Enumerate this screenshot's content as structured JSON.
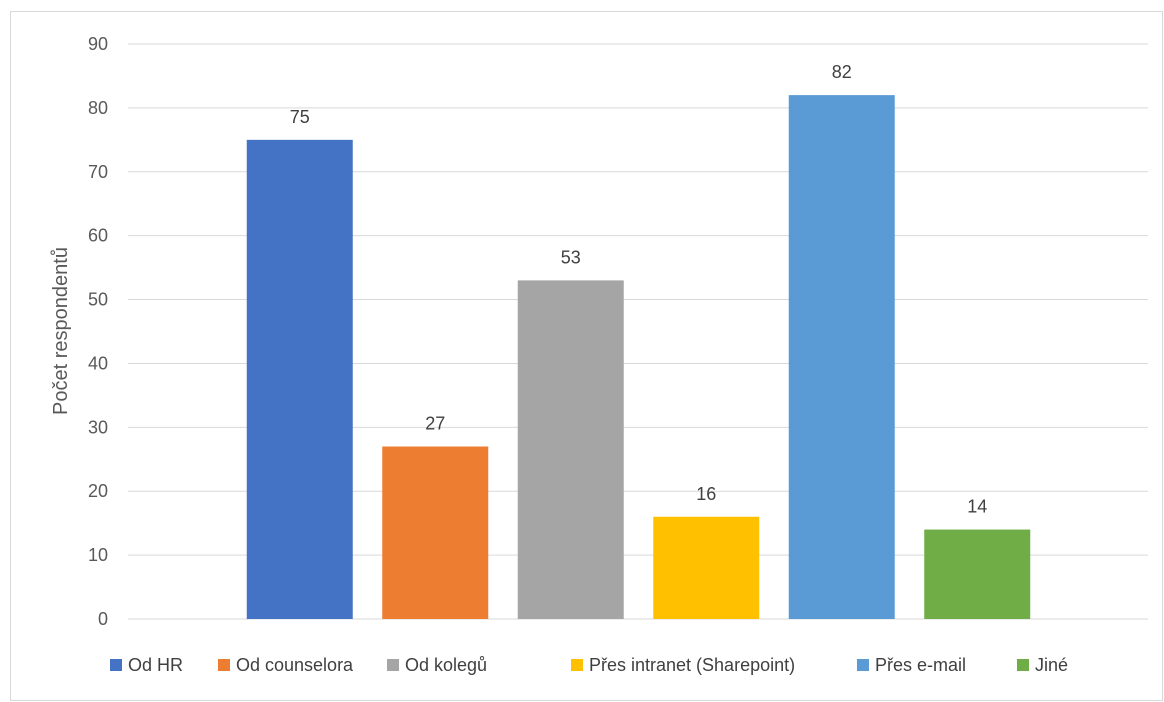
{
  "chart_data": {
    "type": "bar",
    "categories": [
      "Od HR",
      "Od counselora",
      "Od kolegů",
      "Přes intranet (Sharepoint)",
      "Přes e-mail",
      "Jiné"
    ],
    "values": [
      75,
      27,
      53,
      16,
      82,
      14
    ],
    "colors": [
      "#4472C4",
      "#ED7D31",
      "#A5A5A5",
      "#FFC000",
      "#5B9BD5",
      "#70AD47"
    ],
    "ylabel": "Počet respondentů",
    "xlabel": "",
    "ylim": [
      0,
      90
    ],
    "yticks": [
      0,
      10,
      20,
      30,
      40,
      50,
      60,
      70,
      80,
      90
    ],
    "grid": true,
    "legend_position": "bottom",
    "data_labels": true
  }
}
